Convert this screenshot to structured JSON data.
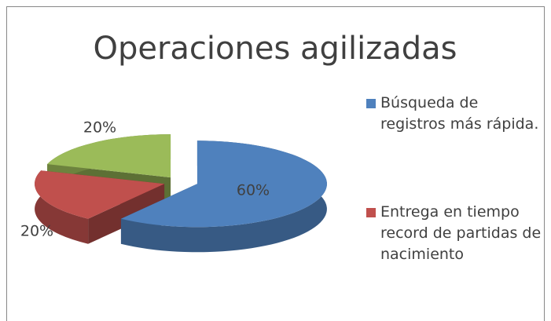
{
  "chart_data": {
    "type": "pie",
    "title": "Operaciones agilizadas",
    "categories": [
      "Búsqueda de registros más rápida.",
      "Entrega en tiempo record de partidas de nacimiento",
      null
    ],
    "values": [
      60,
      20,
      20
    ],
    "value_labels": [
      "60%",
      "20%",
      "20%"
    ],
    "colors": [
      "#4f81bd",
      "#c0504d",
      "#9bbb59"
    ],
    "legend": "right"
  }
}
